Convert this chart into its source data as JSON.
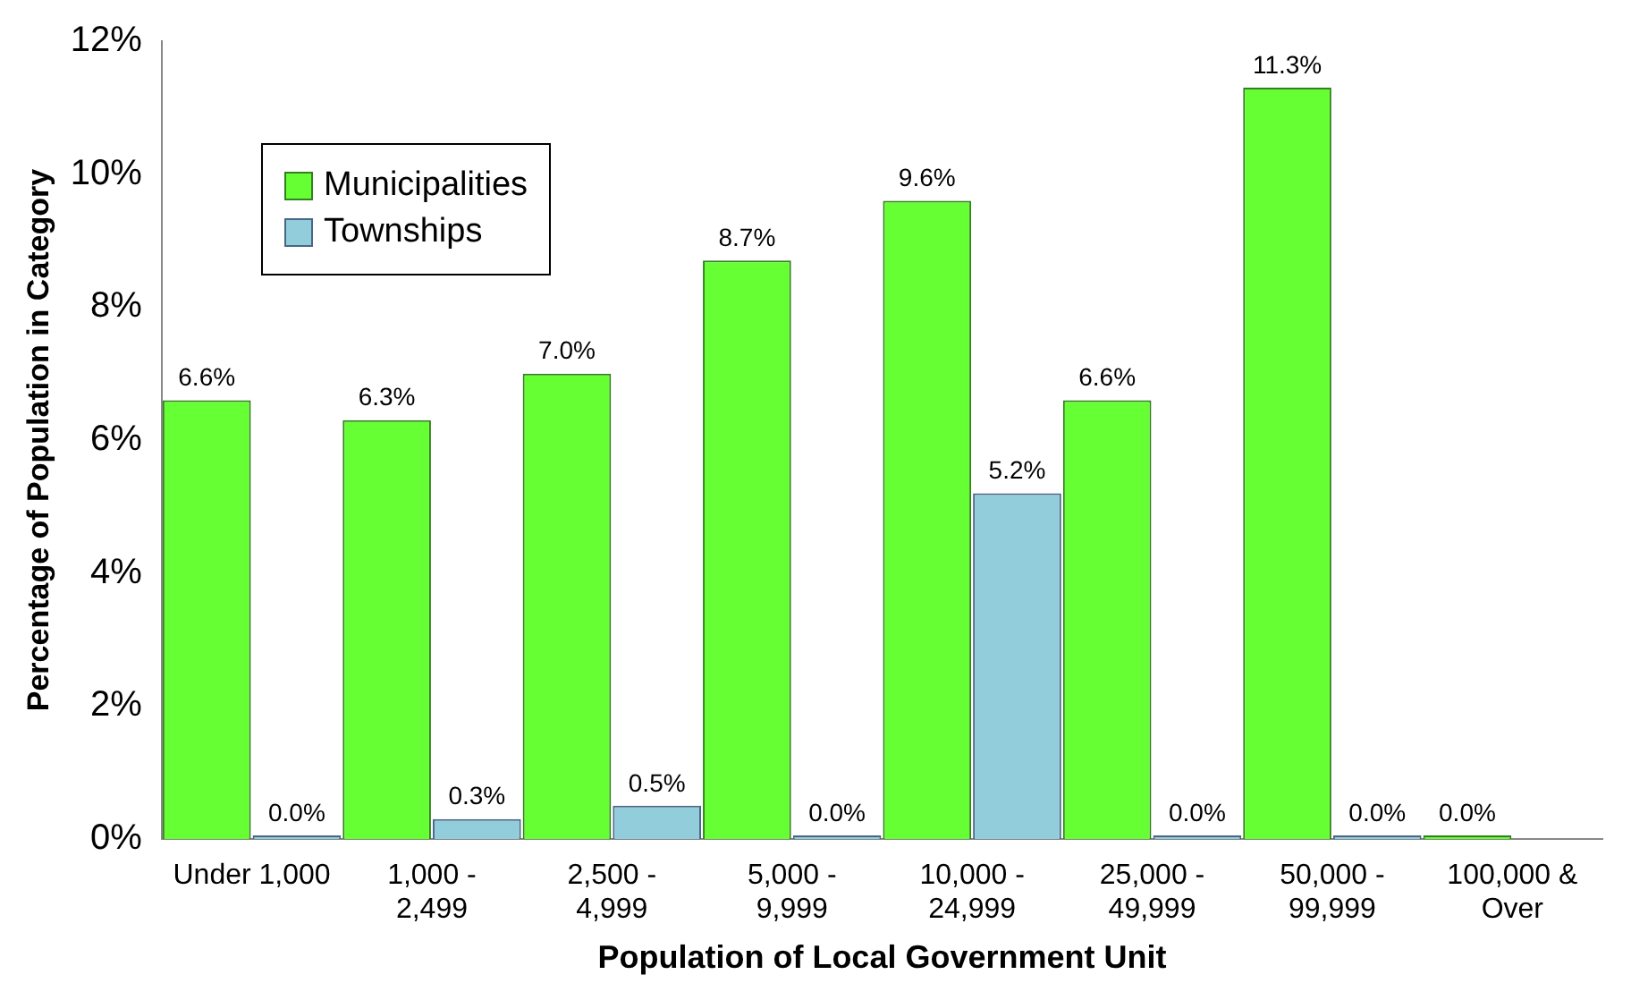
{
  "chart_data": {
    "type": "bar",
    "xlabel": "Population of Local Government Unit",
    "ylabel": "Percentage of Population in Category",
    "categories": [
      "Under 1,000",
      "1,000 - 2,499",
      "2,500 - 4,999",
      "5,000 - 9,999",
      "10,000 - 24,999",
      "25,000 - 49,999",
      "50,000 - 99,999",
      "100,000 & Over"
    ],
    "series": [
      {
        "name": "Municipalities",
        "color": "#66ff33",
        "values": [
          6.6,
          6.3,
          7.0,
          8.7,
          9.6,
          6.6,
          11.3,
          0.0
        ],
        "value_labels": [
          "6.6%",
          "6.3%",
          "7.0%",
          "8.7%",
          "9.6%",
          "6.6%",
          "11.3%",
          "0.0%"
        ]
      },
      {
        "name": "Townships",
        "color": "#92cddc",
        "values": [
          0.0,
          0.3,
          0.5,
          0.0,
          5.2,
          0.0,
          0.0,
          null
        ],
        "value_labels": [
          "0.0%",
          "0.3%",
          "0.5%",
          "0.0%",
          "5.2%",
          "0.0%",
          "0.0%",
          null
        ]
      }
    ],
    "ylim": [
      0,
      12
    ],
    "yticks": [
      {
        "value": 0,
        "label": "0%"
      },
      {
        "value": 2,
        "label": "2%"
      },
      {
        "value": 4,
        "label": "4%"
      },
      {
        "value": 6,
        "label": "6%"
      },
      {
        "value": 8,
        "label": "8%"
      },
      {
        "value": 10,
        "label": "10%"
      },
      {
        "value": 12,
        "label": "12%"
      }
    ],
    "grid": false,
    "legend": "top left"
  }
}
